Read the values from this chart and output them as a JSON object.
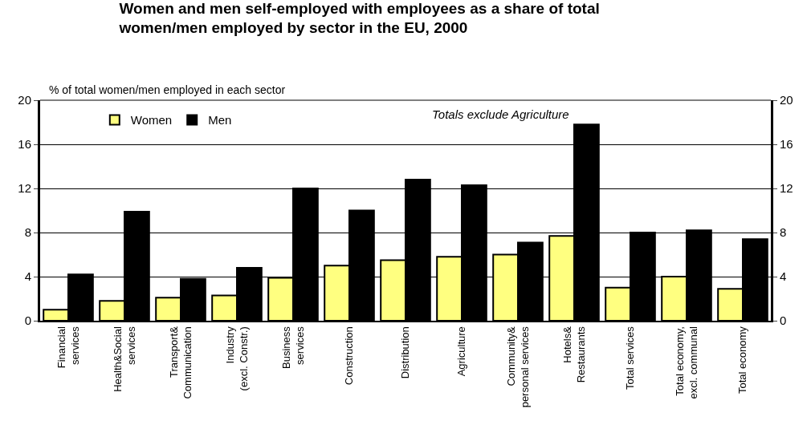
{
  "chart_data": {
    "type": "bar",
    "title": "Women and men self-employed with employees as a share of total\nwomen/men employed by sector in the EU, 2000",
    "ylabel": "% of total women/men employed in each sector",
    "annotations": [
      "Totals exclude Agriculture"
    ],
    "categories": [
      "Financial\nservices",
      "Health&Social\nservices",
      "Transport&\nCommunication",
      "Industry\n(excl. Constr.)",
      "Business\nservices",
      "Construction",
      "Distribution",
      "Agriculture",
      "Community&\npersonal services",
      "Hotels&\nRestaurants",
      "Total services",
      "Total economy,\nexcl. communal",
      "Total economy"
    ],
    "series": [
      {
        "name": "Women",
        "color": "#ffff80",
        "values": [
          1.0,
          1.8,
          2.1,
          2.3,
          3.9,
          5.0,
          5.5,
          5.8,
          6.0,
          7.7,
          3.0,
          4.0,
          2.9
        ]
      },
      {
        "name": "Men",
        "color": "#000000",
        "values": [
          4.2,
          9.9,
          3.8,
          4.8,
          12.0,
          10.0,
          12.8,
          12.3,
          7.1,
          17.8,
          8.0,
          8.2,
          7.4
        ]
      }
    ],
    "ylim": [
      0,
      20
    ],
    "yticks": [
      0,
      4,
      8,
      12,
      16,
      20
    ],
    "y2lim": [
      0,
      20
    ],
    "y2ticks": [
      0,
      4,
      8,
      12,
      16,
      20
    ],
    "grid": "y",
    "legend": "top left"
  }
}
